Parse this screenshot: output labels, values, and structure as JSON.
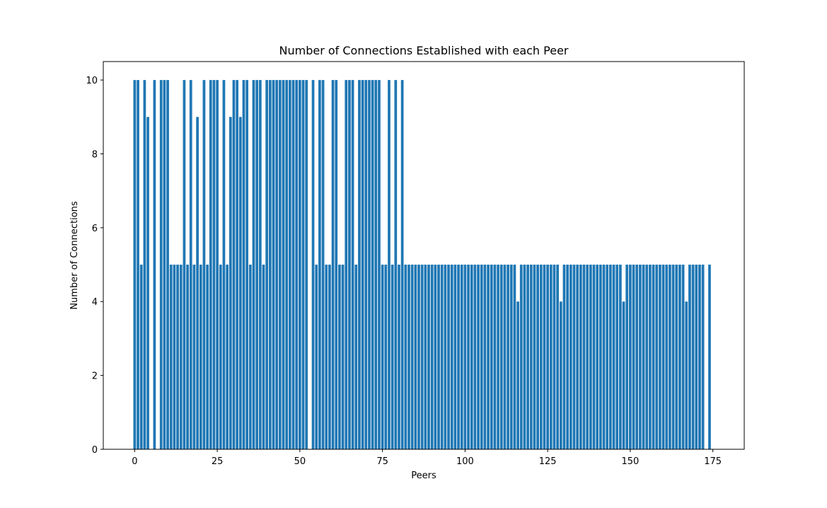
{
  "chart_data": {
    "type": "bar",
    "title": "Number of Connections Established with each Peer",
    "xlabel": "Peers",
    "ylabel": "Number of Connections",
    "x_ticks": [
      0,
      25,
      50,
      75,
      100,
      125,
      150,
      175
    ],
    "y_ticks": [
      0,
      2,
      4,
      6,
      8,
      10
    ],
    "xlim": [
      -9.5,
      184.5
    ],
    "ylim": [
      0,
      10.5
    ],
    "grid": false,
    "bar_color": "#1f77b4",
    "x": [
      0,
      1,
      2,
      3,
      4,
      5,
      6,
      7,
      8,
      9,
      10,
      11,
      12,
      13,
      14,
      15,
      16,
      17,
      18,
      19,
      20,
      21,
      22,
      23,
      24,
      25,
      26,
      27,
      28,
      29,
      30,
      31,
      32,
      33,
      34,
      35,
      36,
      37,
      38,
      39,
      40,
      41,
      42,
      43,
      44,
      45,
      46,
      47,
      48,
      49,
      50,
      51,
      52,
      53,
      54,
      55,
      56,
      57,
      58,
      59,
      60,
      61,
      62,
      63,
      64,
      65,
      66,
      67,
      68,
      69,
      70,
      71,
      72,
      73,
      74,
      75,
      76,
      77,
      78,
      79,
      80,
      81,
      82,
      83,
      84,
      85,
      86,
      87,
      88,
      89,
      90,
      91,
      92,
      93,
      94,
      95,
      96,
      97,
      98,
      99,
      100,
      101,
      102,
      103,
      104,
      105,
      106,
      107,
      108,
      109,
      110,
      111,
      112,
      113,
      114,
      115,
      116,
      117,
      118,
      119,
      120,
      121,
      122,
      123,
      124,
      125,
      126,
      127,
      128,
      129,
      130,
      131,
      132,
      133,
      134,
      135,
      136,
      137,
      138,
      139,
      140,
      141,
      142,
      143,
      144,
      145,
      146,
      147,
      148,
      149,
      150,
      151,
      152,
      153,
      154,
      155,
      156,
      157,
      158,
      159,
      160,
      161,
      162,
      163,
      164,
      165,
      166,
      167,
      168,
      169,
      170,
      171,
      172,
      173,
      174
    ],
    "values": [
      10,
      10,
      5,
      10,
      9,
      0,
      10,
      0,
      10,
      10,
      10,
      5,
      5,
      5,
      5,
      10,
      5,
      10,
      5,
      9,
      5,
      10,
      5,
      10,
      10,
      10,
      5,
      10,
      5,
      9,
      10,
      10,
      9,
      10,
      10,
      5,
      10,
      10,
      10,
      5,
      10,
      10,
      10,
      10,
      10,
      10,
      10,
      10,
      10,
      10,
      10,
      10,
      10,
      0,
      10,
      5,
      10,
      10,
      5,
      5,
      10,
      10,
      5,
      5,
      10,
      10,
      10,
      5,
      10,
      10,
      10,
      10,
      10,
      10,
      10,
      5,
      5,
      10,
      5,
      10,
      5,
      10,
      5,
      5,
      5,
      5,
      5,
      5,
      5,
      5,
      5,
      5,
      5,
      5,
      5,
      5,
      5,
      5,
      5,
      5,
      5,
      5,
      5,
      5,
      5,
      5,
      5,
      5,
      5,
      5,
      5,
      5,
      5,
      5,
      5,
      5,
      4,
      5,
      5,
      5,
      5,
      5,
      5,
      5,
      5,
      5,
      5,
      5,
      5,
      4,
      5,
      5,
      5,
      5,
      5,
      5,
      5,
      5,
      5,
      5,
      5,
      5,
      5,
      5,
      5,
      5,
      5,
      5,
      4,
      5,
      5,
      5,
      5,
      5,
      5,
      5,
      5,
      5,
      5,
      5,
      5,
      5,
      5,
      5,
      5,
      5,
      5,
      4,
      5,
      5,
      5,
      5,
      5,
      0,
      5
    ]
  }
}
